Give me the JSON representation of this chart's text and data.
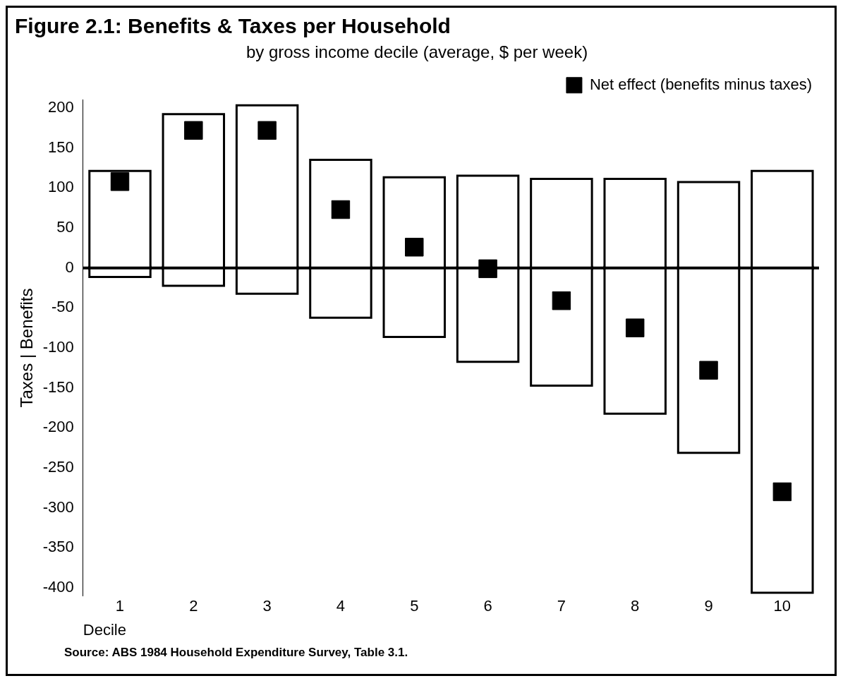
{
  "chart_data": {
    "type": "bar",
    "title": "Figure 2.1: Benefits & Taxes per Household",
    "subtitle": "by gross income decile (average, $ per week)",
    "xlabel": "Decile",
    "ylabel": "Taxes | Benefits",
    "categories": [
      "1",
      "2",
      "3",
      "4",
      "5",
      "6",
      "7",
      "8",
      "9",
      "10"
    ],
    "series": [
      {
        "color": "#ffffff",
        "values": [
          120,
          191,
          202,
          134,
          112,
          114,
          110,
          110,
          106,
          120
        ]
      },
      {
        "color": "#ffffff",
        "values": [
          -10,
          -21,
          -31,
          -61,
          -85,
          -116,
          -146,
          -181,
          -230,
          -405
        ]
      },
      {
        "type": "scatter",
        "name": "Net effect (benefits minus taxes)",
        "color": "#000000",
        "x": [
          "1",
          "2",
          "3",
          "4",
          "5",
          "6",
          "7",
          "8",
          "9",
          "10"
        ],
        "values": [
          108,
          172,
          172,
          73,
          26,
          -1,
          -41,
          -75,
          -128,
          -280
        ]
      }
    ],
    "stacked": true,
    "ylim": [
      -410,
      210
    ],
    "yticks": [
      -400,
      -350,
      -300,
      -250,
      -200,
      -150,
      -100,
      -50,
      0,
      50,
      100,
      150,
      200
    ],
    "grid": false,
    "ref_lines": [
      {
        "axis": "y",
        "value": 0,
        "color": "#000000"
      }
    ],
    "legend": "top right",
    "marker": "square",
    "annotations": [
      "Source: ABS 1984 Household Expenditure Survey, Table 3.1."
    ]
  }
}
